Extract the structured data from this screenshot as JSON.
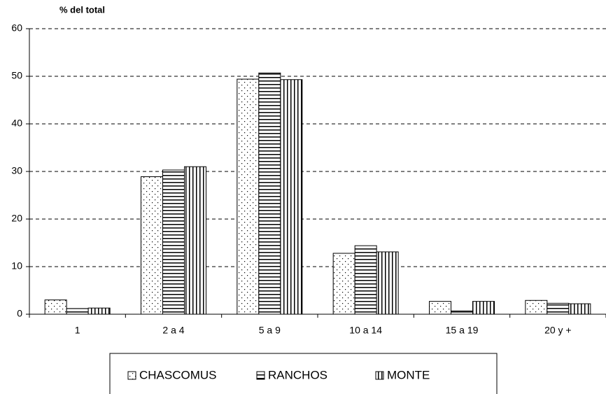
{
  "chart_data": {
    "type": "bar",
    "y_label": "% del total",
    "categories": [
      "1",
      "2 a 4",
      "5 a 9",
      "10 a 14",
      "15 a 19",
      "20 y +"
    ],
    "series": [
      {
        "name": "CHASCOMUS",
        "color": "#000000",
        "pattern": "dots",
        "values": [
          3.0,
          28.9,
          49.4,
          12.8,
          2.7,
          2.9
        ]
      },
      {
        "name": "RANCHOS",
        "color": "#000000",
        "pattern": "horizontal",
        "values": [
          1.2,
          30.3,
          50.7,
          14.4,
          0.7,
          2.3
        ]
      },
      {
        "name": "MONTE",
        "color": "#000000",
        "pattern": "vertical",
        "values": [
          1.3,
          31.0,
          49.3,
          13.1,
          2.7,
          2.2
        ]
      }
    ],
    "ylim": [
      0,
      60
    ],
    "yticks": [
      0,
      10,
      20,
      30,
      40,
      50,
      60
    ],
    "grid": true,
    "legend": "bottom"
  }
}
